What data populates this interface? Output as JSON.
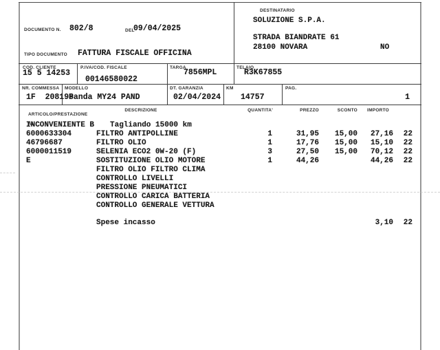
{
  "header": {
    "documento_label": "DOCUMENTO N.",
    "documento_value": "802/8",
    "del_label": "DEL",
    "del_value": "09/04/2025",
    "tipo_label": "TIPO DOCUMENTO",
    "tipo_value": "FATTURA FISCALE OFFICINA"
  },
  "destinatario": {
    "label": "DESTINATARIO",
    "name": "SOLUZIONE S.P.A.",
    "address": "STRADA BIANDRATE 61",
    "city": "28100 NOVARA",
    "province": "NO"
  },
  "info": {
    "cod_cliente_label": "COD. CLIENTE",
    "cod_cliente": "15 5 14253",
    "piva_label": "P.IVA/COD. FISCALE",
    "piva": "00146580022",
    "targa_label": "TARGA",
    "targa": "7856MPL",
    "telaio_label": "TELAIO",
    "telaio": "R3K67855",
    "commessa_label": "NR. COMMESSA",
    "commessa": "1F  208198",
    "modello_label": "MODELLO",
    "modello": "Panda MY24 PAND",
    "garanzia_label": "DT. GARANZIA",
    "garanzia": "02/04/2024",
    "km_label": "KM",
    "km": "14757",
    "pag_label": "PAG.",
    "pag": "1"
  },
  "table": {
    "col_articolo_line1": "ARTICOLO/PRESTAZIONE",
    "col_articolo_line2": "AL",
    "col_descrizione": "DESCRIZIONE",
    "col_quantita": "QUANTITA'",
    "col_prezzo": "PREZZO",
    "col_sconto": "SCONTO",
    "col_importo": "IMPORTO",
    "rows": [
      {
        "articolo": "INCONVENIENTE B",
        "descrizione": "Tagliando 15000 km",
        "indent": true,
        "quantita": "",
        "prezzo": "",
        "sconto": "",
        "importo": "",
        "iva": ""
      },
      {
        "articolo": "6000633304",
        "descrizione": "FILTRO ANTIPOLLINE",
        "quantita": "1",
        "prezzo": "31,95",
        "sconto": "15,00",
        "importo": "27,16",
        "iva": "22"
      },
      {
        "articolo": "46796687",
        "descrizione": "FILTRO OLIO",
        "quantita": "1",
        "prezzo": "17,76",
        "sconto": "15,00",
        "importo": "15,10",
        "iva": "22"
      },
      {
        "articolo": "6000011519",
        "descrizione": "SELENIA ECO2 0W-20 (F)",
        "quantita": "3",
        "prezzo": "27,50",
        "sconto": "15,00",
        "importo": "70,12",
        "iva": "22"
      },
      {
        "articolo": "E",
        "descrizione": "SOSTITUZIONE OLIO MOTORE",
        "quantita": "1",
        "prezzo": "44,26",
        "sconto": "",
        "importo": "44,26",
        "iva": "22"
      },
      {
        "articolo": "",
        "descrizione": "FILTRO OLIO FILTRO CLIMA",
        "quantita": "",
        "prezzo": "",
        "sconto": "",
        "importo": "",
        "iva": ""
      },
      {
        "articolo": "",
        "descrizione": "CONTROLLO LIVELLI",
        "quantita": "",
        "prezzo": "",
        "sconto": "",
        "importo": "",
        "iva": ""
      },
      {
        "articolo": "",
        "descrizione": "PRESSIONE PNEUMATICI",
        "quantita": "",
        "prezzo": "",
        "sconto": "",
        "importo": "",
        "iva": ""
      },
      {
        "articolo": "",
        "descrizione": "CONTROLLO CARICA BATTERIA",
        "quantita": "",
        "prezzo": "",
        "sconto": "",
        "importo": "",
        "iva": ""
      },
      {
        "articolo": "",
        "descrizione": "CONTROLLO GENERALE VETTURA",
        "quantita": "",
        "prezzo": "",
        "sconto": "",
        "importo": "",
        "iva": ""
      }
    ],
    "spese": {
      "label": "Spese incasso",
      "importo": "3,10",
      "iva": "22"
    }
  }
}
